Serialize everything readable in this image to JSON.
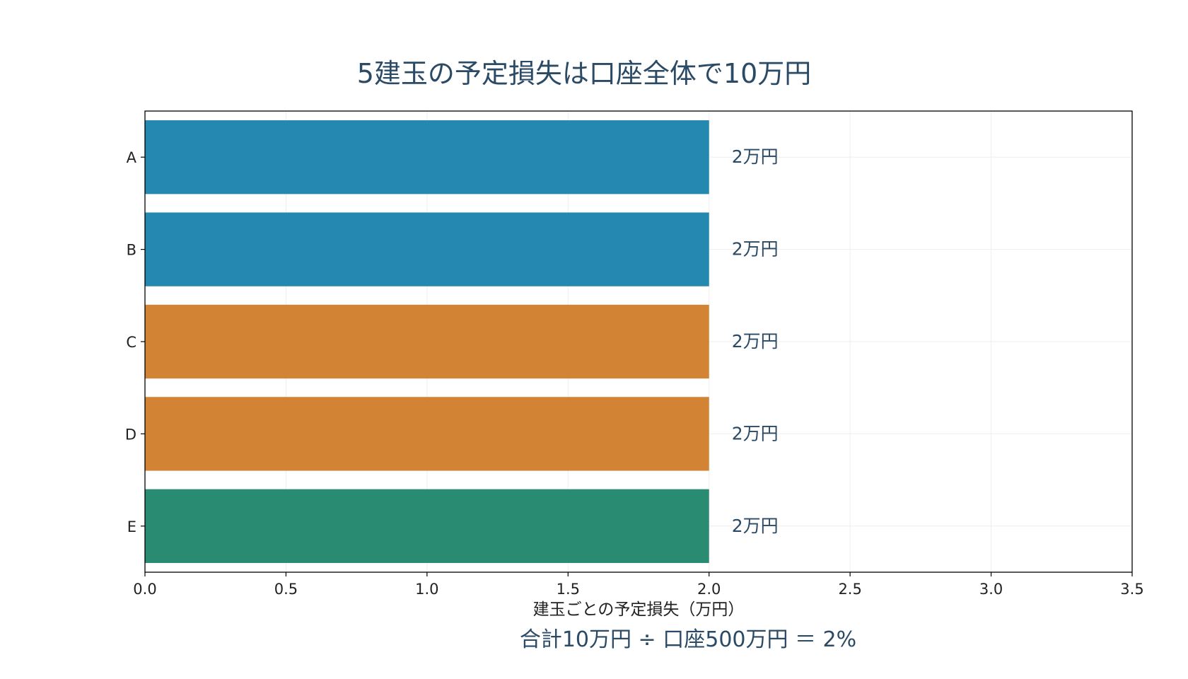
{
  "chart_data": {
    "type": "bar",
    "orientation": "horizontal",
    "title": "5建玉の予定損失は口座全体で10万円",
    "xlabel": "建玉ごとの予定損失（万円）",
    "ylabel": "",
    "xlim": [
      0,
      3.5
    ],
    "x_ticks": [
      0.0,
      0.5,
      1.0,
      1.5,
      2.0,
      2.5,
      3.0,
      3.5
    ],
    "x_tick_labels": [
      "0.0",
      "0.5",
      "1.0",
      "1.5",
      "2.0",
      "2.5",
      "3.0",
      "3.5"
    ],
    "grid": true,
    "categories": [
      "A",
      "B",
      "C",
      "D",
      "E"
    ],
    "values": [
      2,
      2,
      2,
      2,
      2
    ],
    "data_labels": [
      "2万円",
      "2万円",
      "2万円",
      "2万円",
      "2万円"
    ],
    "bar_colors": [
      "#2488b0",
      "#2488b0",
      "#d38334",
      "#d38334",
      "#2a8b73"
    ],
    "annotation": "合計10万円 ÷ 口座500万円 ＝ 2%"
  }
}
